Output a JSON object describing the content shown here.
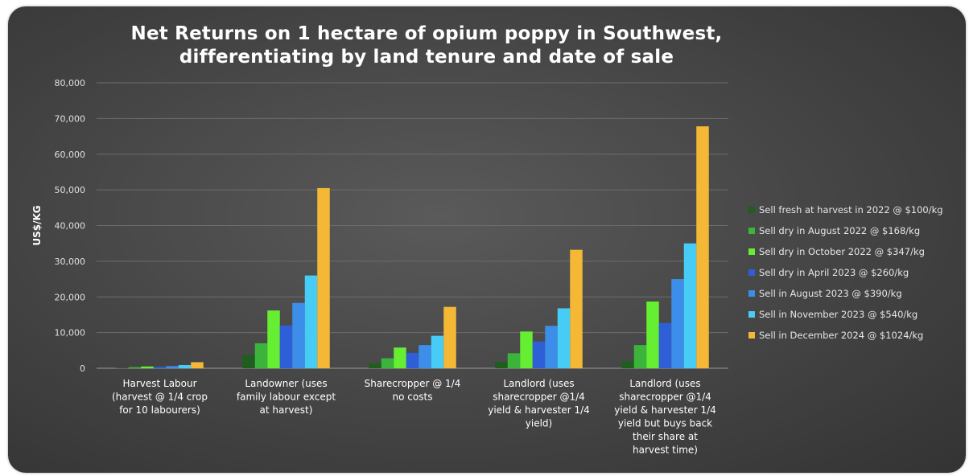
{
  "chart_data": {
    "type": "bar",
    "title_lines": [
      "Net Returns on 1 hectare of opium poppy in Southwest,",
      "differentiating by land tenure and date of sale"
    ],
    "ylabel": "US$/KG",
    "ylim": [
      0,
      80000
    ],
    "yticks": [
      0,
      10000,
      20000,
      30000,
      40000,
      50000,
      60000,
      70000,
      80000
    ],
    "ytick_labels": [
      "0",
      "10,000",
      "20,000",
      "30,000",
      "40,000",
      "50,000",
      "60,000",
      "70,000",
      "80,000"
    ],
    "grid": true,
    "legend_position": "right",
    "categories": [
      [
        "Harvest Labour",
        "(harvest @ 1/4 crop",
        "for 10 labourers)"
      ],
      [
        "Landowner (uses",
        "family labour except",
        "at harvest)"
      ],
      [
        "Sharecropper @ 1/4",
        "no costs"
      ],
      [
        "Landlord (uses",
        "sharecropper @1/4",
        "yield & harvester 1/4",
        "yield)"
      ],
      [
        "Landlord (uses",
        "sharecropper @1/4",
        "yield & harvester 1/4",
        "yield but buys back",
        "their share at",
        "harvest time)"
      ]
    ],
    "series": [
      {
        "name": "Sell fresh at harvest in 2022 @ $100/kg",
        "color": "#1f5e1f",
        "values": [
          100,
          3800,
          1400,
          1800,
          2000
        ]
      },
      {
        "name": "Sell dry in August 2022 @ $168/kg",
        "color": "#3cb43c",
        "values": [
          300,
          7000,
          2800,
          4200,
          6500
        ]
      },
      {
        "name": "Sell dry in October 2022 @ $347/kg",
        "color": "#66ee33",
        "values": [
          500,
          16200,
          5800,
          10300,
          18700
        ]
      },
      {
        "name": "Sell dry in April 2023 @ $260/kg",
        "color": "#2f5fd6",
        "values": [
          400,
          12000,
          4300,
          7500,
          12700
        ]
      },
      {
        "name": "Sell in August 2023 @ $390/kg",
        "color": "#3d8ee8",
        "values": [
          600,
          18300,
          6500,
          11900,
          25000
        ]
      },
      {
        "name": "Sell in November 2023 @ $540/kg",
        "color": "#47ccf5",
        "values": [
          900,
          26000,
          9100,
          16800,
          35000
        ]
      },
      {
        "name": "Sell in December 2024 @ $1024/kg",
        "color": "#f4b836",
        "values": [
          1700,
          50500,
          17200,
          33200,
          67800
        ]
      }
    ]
  }
}
